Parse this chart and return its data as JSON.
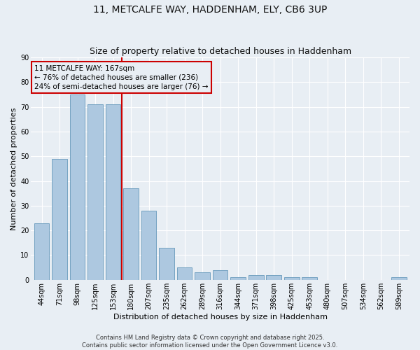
{
  "title": "11, METCALFE WAY, HADDENHAM, ELY, CB6 3UP",
  "subtitle": "Size of property relative to detached houses in Haddenham",
  "xlabel": "Distribution of detached houses by size in Haddenham",
  "ylabel": "Number of detached properties",
  "categories": [
    "44sqm",
    "71sqm",
    "98sqm",
    "125sqm",
    "153sqm",
    "180sqm",
    "207sqm",
    "235sqm",
    "262sqm",
    "289sqm",
    "316sqm",
    "344sqm",
    "371sqm",
    "398sqm",
    "425sqm",
    "453sqm",
    "480sqm",
    "507sqm",
    "534sqm",
    "562sqm",
    "589sqm"
  ],
  "values": [
    23,
    49,
    75,
    71,
    71,
    37,
    28,
    13,
    5,
    3,
    4,
    1,
    2,
    2,
    1,
    1,
    0,
    0,
    0,
    0,
    1
  ],
  "bar_color": "#adc8e0",
  "bar_edge_color": "#6699bb",
  "property_line_x": 4.5,
  "annotation_line1": "11 METCALFE WAY: 167sqm",
  "annotation_line2": "← 76% of detached houses are smaller (236)",
  "annotation_line3": "24% of semi-detached houses are larger (76) →",
  "vline_color": "#cc0000",
  "box_color": "#cc0000",
  "ylim": [
    0,
    90
  ],
  "yticks": [
    0,
    10,
    20,
    30,
    40,
    50,
    60,
    70,
    80,
    90
  ],
  "background_color": "#e8eef4",
  "grid_color": "#ffffff",
  "footer_line1": "Contains HM Land Registry data © Crown copyright and database right 2025.",
  "footer_line2": "Contains public sector information licensed under the Open Government Licence v3.0.",
  "title_fontsize": 10,
  "subtitle_fontsize": 9,
  "axis_label_fontsize": 8,
  "tick_fontsize": 7,
  "annotation_fontsize": 7.5,
  "footer_fontsize": 6
}
